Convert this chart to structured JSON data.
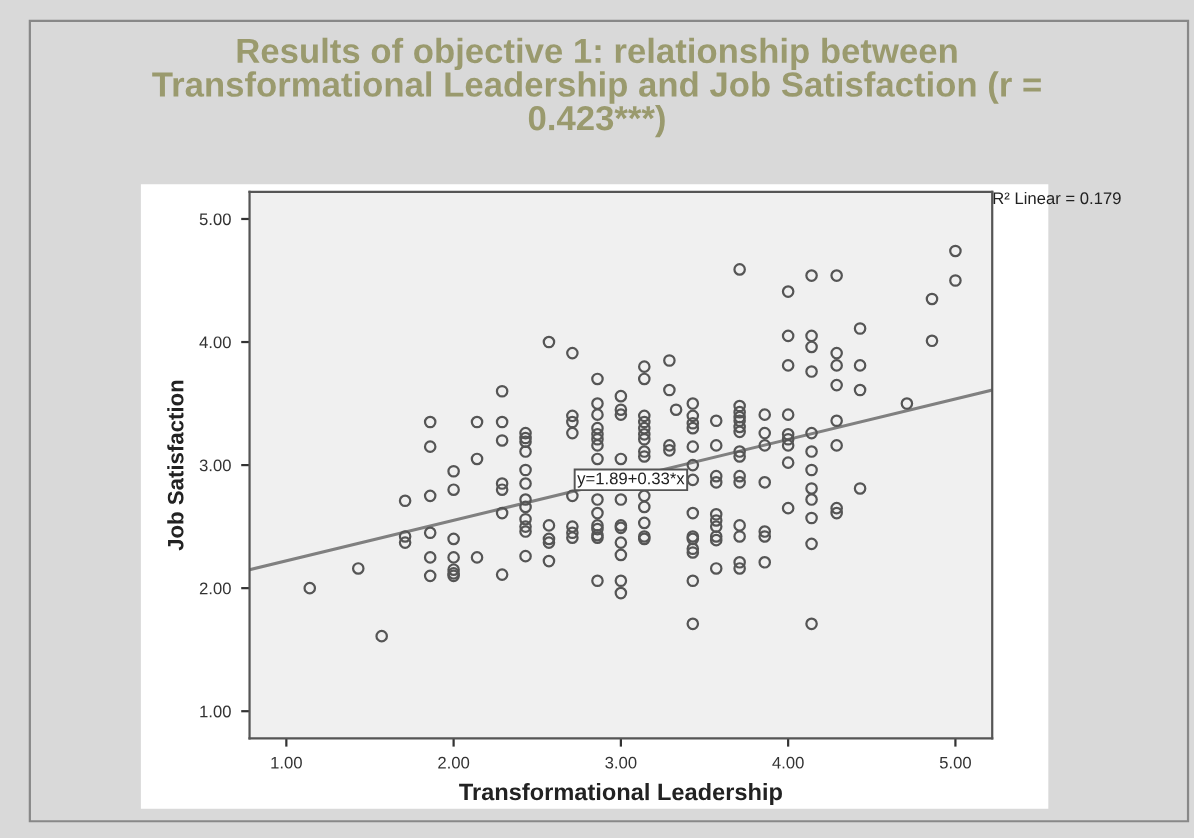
{
  "chart_data": {
    "type": "scatter",
    "title": "Results of objective 1: relationship between\nTransformational Leadership and Job Satisfaction (r =\n0.423***)",
    "xlabel": "Transformational Leadership",
    "ylabel": "Job Satisfaction",
    "annotations": [
      "R² Linear = 0.179",
      {
        "text": "y=1.89+0.33*x",
        "x": 3.06,
        "y": 2.88
      }
    ],
    "xlim": [
      0.78,
      5.22
    ],
    "ylim": [
      0.78,
      5.22
    ],
    "xticks": [
      {
        "value": 1,
        "label": "1.00"
      },
      {
        "value": 2,
        "label": "2.00"
      },
      {
        "value": 3,
        "label": "3.00"
      },
      {
        "value": 4,
        "label": "4.00"
      },
      {
        "value": 5,
        "label": "5.00"
      }
    ],
    "yticks": [
      {
        "value": 1,
        "label": "1.00"
      },
      {
        "value": 2,
        "label": "2.00"
      },
      {
        "value": 3,
        "label": "3.00"
      },
      {
        "value": 4,
        "label": "4.00"
      },
      {
        "value": 5,
        "label": "5.00"
      }
    ],
    "grid": false,
    "legend": false,
    "marker": "circle",
    "series": [
      {
        "color": "#555555",
        "x": [
          1.14,
          1.43,
          1.57,
          1.71,
          1.71,
          1.71,
          1.86,
          1.86,
          1.86,
          1.86,
          1.86,
          1.86,
          2.0,
          2.0,
          2.0,
          2.0,
          2.0,
          2.0,
          2.0,
          2.14,
          2.14,
          2.14,
          2.29,
          2.29,
          2.29,
          2.29,
          2.29,
          2.29,
          2.29,
          2.43,
          2.43,
          2.43,
          2.43,
          2.43,
          2.43,
          2.43,
          2.43,
          2.43,
          2.43,
          2.43,
          2.43,
          2.57,
          2.57,
          2.57,
          2.57,
          2.57,
          2.71,
          2.71,
          2.71,
          2.71,
          2.71,
          2.71,
          2.71,
          2.71,
          2.86,
          2.86,
          2.86,
          2.86,
          2.86,
          2.86,
          2.86,
          2.86,
          2.86,
          2.86,
          2.86,
          2.86,
          2.86,
          2.86,
          2.86,
          3.0,
          3.0,
          3.0,
          3.0,
          3.0,
          3.0,
          3.0,
          3.0,
          3.0,
          3.0,
          3.0,
          3.14,
          3.14,
          3.14,
          3.14,
          3.14,
          3.14,
          3.14,
          3.14,
          3.14,
          3.14,
          3.14,
          3.14,
          3.14,
          3.14,
          3.29,
          3.29,
          3.29,
          3.29,
          3.33,
          3.43,
          3.43,
          3.43,
          3.43,
          3.43,
          3.43,
          3.43,
          3.43,
          3.43,
          3.43,
          3.43,
          3.43,
          3.43,
          3.43,
          3.57,
          3.57,
          3.57,
          3.57,
          3.57,
          3.57,
          3.57,
          3.57,
          3.57,
          3.57,
          3.71,
          3.71,
          3.71,
          3.71,
          3.71,
          3.71,
          3.71,
          3.71,
          3.71,
          3.71,
          3.71,
          3.71,
          3.71,
          3.71,
          3.71,
          3.86,
          3.86,
          3.86,
          3.86,
          3.86,
          3.86,
          3.86,
          4.0,
          4.0,
          4.0,
          4.0,
          4.0,
          4.0,
          4.0,
          4.0,
          4.0,
          4.14,
          4.14,
          4.14,
          4.14,
          4.14,
          4.14,
          4.14,
          4.14,
          4.14,
          4.14,
          4.14,
          4.14,
          4.29,
          4.29,
          4.29,
          4.29,
          4.29,
          4.29,
          4.29,
          4.29,
          4.43,
          4.43,
          4.43,
          4.43,
          4.71,
          4.86,
          4.86,
          5.0,
          5.0
        ],
        "values": [
          2.0,
          2.16,
          1.61,
          2.71,
          2.42,
          2.37,
          3.35,
          3.15,
          2.75,
          2.45,
          2.25,
          2.1,
          2.95,
          2.8,
          2.4,
          2.25,
          2.15,
          2.12,
          2.1,
          3.35,
          3.05,
          2.25,
          3.6,
          3.35,
          3.2,
          2.85,
          2.8,
          2.61,
          2.11,
          3.26,
          3.22,
          3.19,
          3.11,
          2.96,
          2.85,
          2.72,
          2.66,
          2.56,
          2.5,
          2.46,
          2.26,
          4.0,
          2.51,
          2.4,
          2.37,
          2.22,
          3.91,
          3.4,
          3.35,
          3.26,
          2.75,
          2.5,
          2.45,
          2.41,
          3.7,
          3.5,
          3.41,
          3.3,
          3.25,
          3.21,
          3.16,
          3.05,
          2.72,
          2.61,
          2.51,
          2.48,
          2.43,
          2.41,
          2.06,
          3.56,
          3.45,
          3.41,
          3.05,
          2.72,
          2.51,
          2.49,
          2.37,
          2.27,
          2.06,
          1.96,
          3.8,
          3.7,
          3.4,
          3.35,
          3.3,
          3.25,
          3.21,
          3.11,
          3.07,
          2.75,
          2.66,
          2.53,
          2.42,
          2.4,
          3.85,
          3.61,
          3.16,
          3.12,
          3.45,
          3.5,
          3.4,
          3.34,
          3.3,
          3.15,
          3.0,
          2.88,
          2.61,
          2.42,
          2.4,
          2.32,
          2.29,
          2.06,
          1.71,
          3.36,
          3.16,
          2.91,
          2.86,
          2.6,
          2.55,
          2.5,
          2.42,
          2.39,
          2.16,
          4.59,
          3.48,
          3.43,
          3.39,
          3.36,
          3.31,
          3.27,
          3.11,
          3.07,
          2.91,
          2.86,
          2.51,
          2.42,
          2.21,
          2.16,
          3.41,
          3.26,
          3.16,
          2.86,
          2.46,
          2.42,
          2.21,
          4.41,
          4.05,
          3.81,
          3.41,
          3.25,
          3.21,
          3.16,
          3.02,
          2.65,
          4.54,
          4.05,
          3.96,
          3.76,
          3.26,
          3.11,
          2.96,
          2.81,
          2.72,
          2.57,
          2.36,
          1.71,
          4.54,
          3.91,
          3.81,
          3.65,
          3.36,
          3.16,
          2.65,
          2.61,
          4.11,
          3.81,
          3.61,
          2.81,
          3.5,
          4.35,
          4.01,
          4.74,
          4.5
        ]
      },
      {
        "type": "line",
        "color": "#808080",
        "marker": "none",
        "x": [
          0.78,
          5.22
        ],
        "values": [
          2.15,
          3.61
        ]
      }
    ]
  }
}
